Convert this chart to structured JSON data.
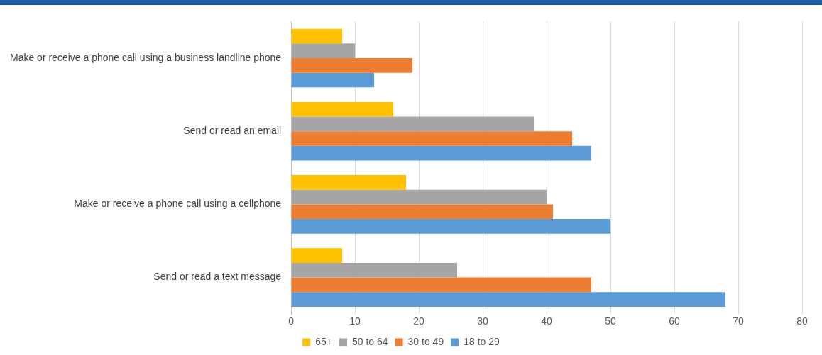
{
  "chart_data": {
    "type": "bar",
    "orientation": "horizontal",
    "categories": [
      "Make or receive a phone call using a business landline phone",
      "Send or read an email",
      "Make or receive a phone call using a cellphone",
      "Send or read a text message"
    ],
    "series": [
      {
        "name": "65+",
        "color": "#ffc000",
        "values": [
          8,
          16,
          18,
          8
        ]
      },
      {
        "name": "50 to 64",
        "color": "#a5a5a5",
        "values": [
          10,
          38,
          40,
          26
        ]
      },
      {
        "name": "30 to 49",
        "color": "#ed7d31",
        "values": [
          19,
          44,
          41,
          47
        ]
      },
      {
        "name": "18 to 29",
        "color": "#5b9bd5",
        "values": [
          13,
          47,
          50,
          68
        ]
      }
    ],
    "xlim": [
      0,
      80
    ],
    "xticks": [
      0,
      10,
      20,
      30,
      40,
      50,
      60,
      70,
      80
    ],
    "grid": "x",
    "legend": "bottom"
  }
}
